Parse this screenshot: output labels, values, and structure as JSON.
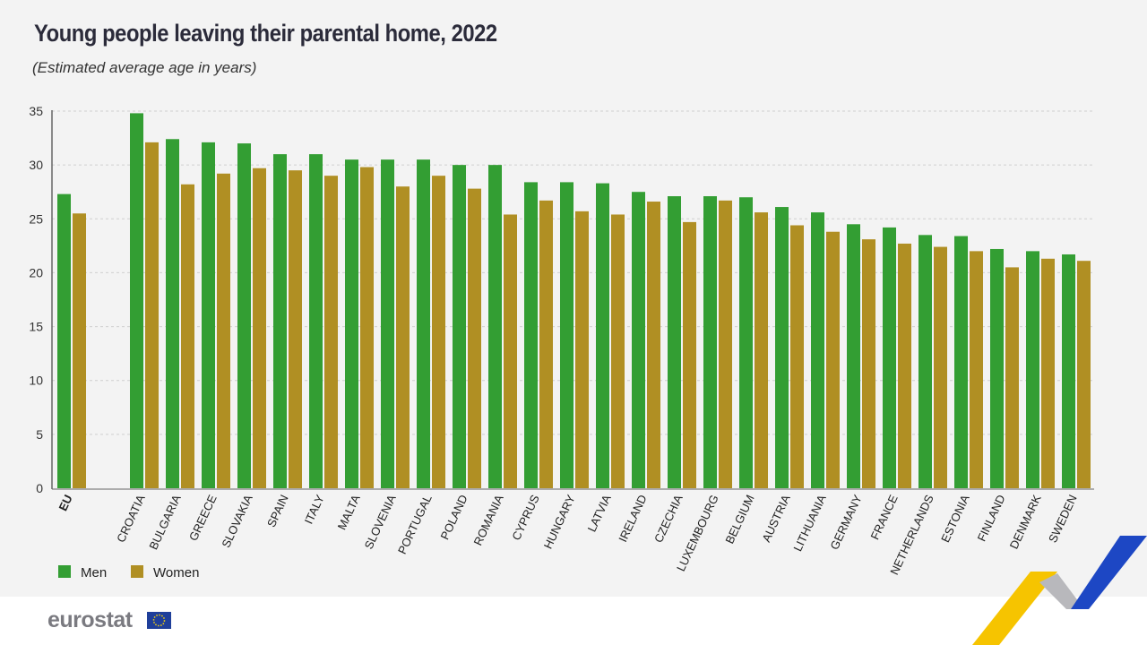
{
  "chart_data": {
    "type": "bar",
    "title": "Young people leaving their parental home, 2022",
    "subtitle": "(Estimated average age in years)",
    "categories": [
      "EU",
      "CROATIA",
      "BULGARIA",
      "GREECE",
      "SLOVAKIA",
      "SPAIN",
      "ITALY",
      "MALTA",
      "SLOVENIA",
      "PORTUGAL",
      "POLAND",
      "ROMANIA",
      "CYPRUS",
      "HUNGARY",
      "LATVIA",
      "IRELAND",
      "CZECHIA",
      "LUXEMBOURG",
      "BELGIUM",
      "AUSTRIA",
      "LITHUANIA",
      "GERMANY",
      "FRANCE",
      "NETHERLANDS",
      "ESTONIA",
      "FINLAND",
      "DENMARK",
      "SWEDEN"
    ],
    "series": [
      {
        "name": "Men",
        "color": "#339e33",
        "values": [
          27.3,
          34.8,
          32.4,
          32.1,
          32.0,
          31.0,
          31.0,
          30.5,
          30.5,
          30.5,
          30.0,
          30.0,
          28.4,
          28.4,
          28.3,
          27.5,
          27.1,
          27.1,
          27.0,
          26.1,
          25.6,
          24.5,
          24.2,
          23.5,
          23.4,
          22.2,
          22.0,
          21.7
        ]
      },
      {
        "name": "Women",
        "color": "#b08f23",
        "values": [
          25.5,
          32.1,
          28.2,
          29.2,
          29.7,
          29.5,
          29.0,
          29.8,
          28.0,
          29.0,
          27.8,
          25.4,
          26.7,
          25.7,
          25.4,
          26.6,
          24.7,
          26.7,
          25.6,
          24.4,
          23.8,
          23.1,
          22.7,
          22.4,
          22.0,
          20.5,
          21.3,
          21.1
        ]
      }
    ],
    "yticks": [
      "0",
      "5",
      "10",
      "15",
      "20",
      "25",
      "30",
      "35"
    ],
    "ylim": [
      0,
      35
    ],
    "grid": true,
    "legend": "bottom-left",
    "xlabel": "",
    "ylabel": ""
  },
  "footer": {
    "logo_text": "eurostat"
  }
}
